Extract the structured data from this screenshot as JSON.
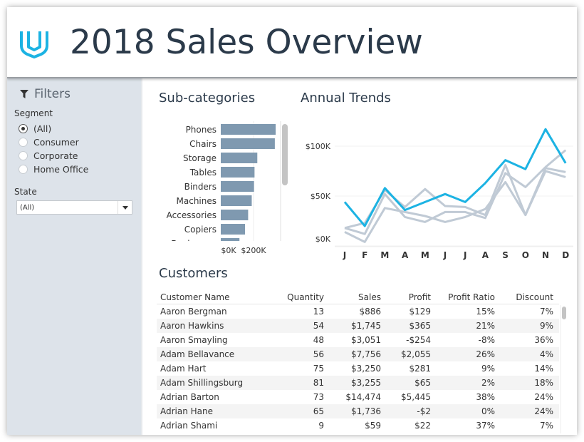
{
  "header": {
    "title": "2018 Sales Overview",
    "logo": "udacity-logo",
    "accent": "#1cb3e3"
  },
  "filters": {
    "title": "Filters",
    "icon": "filter-icon",
    "segment": {
      "label": "Segment",
      "options": [
        "(All)",
        "Consumer",
        "Corporate",
        "Home Office"
      ],
      "selected": "(All)"
    },
    "state": {
      "label": "State",
      "value": "(All)"
    }
  },
  "subcategories": {
    "title": "Sub-categories"
  },
  "annual": {
    "title": "Annual Trends"
  },
  "customers": {
    "title": "Customers",
    "columns": [
      "Customer Name",
      "Quantity",
      "Sales",
      "Profit",
      "Profit Ratio",
      "Discount"
    ],
    "rows": [
      [
        "Aaron Bergman",
        "13",
        "$886",
        "$129",
        "15%",
        "7%"
      ],
      [
        "Aaron Hawkins",
        "54",
        "$1,745",
        "$365",
        "21%",
        "9%"
      ],
      [
        "Aaron Smayling",
        "48",
        "$3,051",
        "-$254",
        "-8%",
        "36%"
      ],
      [
        "Adam Bellavance",
        "56",
        "$7,756",
        "$2,055",
        "26%",
        "4%"
      ],
      [
        "Adam Hart",
        "75",
        "$3,250",
        "$281",
        "9%",
        "14%"
      ],
      [
        "Adam Shillingsburg",
        "81",
        "$3,255",
        "$65",
        "2%",
        "18%"
      ],
      [
        "Adrian Barton",
        "73",
        "$14,474",
        "$5,445",
        "38%",
        "24%"
      ],
      [
        "Adrian Hane",
        "65",
        "$1,736",
        "-$2",
        "0%",
        "24%"
      ],
      [
        "Adrian Shami",
        "9",
        "$59",
        "$22",
        "37%",
        "7%"
      ]
    ]
  },
  "chart_data": [
    {
      "type": "bar",
      "orientation": "horizontal",
      "title": "Sub-categories",
      "categories": [
        "Phones",
        "Chairs",
        "Storage",
        "Tables",
        "Binders",
        "Machines",
        "Accessories",
        "Copiers",
        "Bookcases"
      ],
      "values": [
        335,
        330,
        223,
        206,
        203,
        189,
        167,
        148,
        114
      ],
      "unit": "$K",
      "xticks": [
        "$0K",
        "$200K"
      ],
      "xlim": [
        0,
        340
      ],
      "color": "#7f99b0",
      "grid": true
    },
    {
      "type": "line",
      "title": "Annual Trends",
      "categories": [
        "J",
        "F",
        "M",
        "A",
        "M",
        "J",
        "J",
        "A",
        "S",
        "O",
        "N",
        "D"
      ],
      "yticks": [
        "$0K",
        "$50K",
        "$100K"
      ],
      "ylim": [
        0,
        120
      ],
      "unit": "$K",
      "grid": true,
      "series": [
        {
          "values": [
            18,
            23,
            56,
            39,
            57,
            40,
            39,
            31,
            81,
            31,
            78,
            74
          ],
          "color": "#c0cad5"
        },
        {
          "values": [
            18,
            12,
            52,
            29,
            24,
            34,
            34,
            28,
            73,
            59,
            79,
            96
          ],
          "color": "#c0cad5"
        },
        {
          "values": [
            14,
            4,
            38,
            34,
            30,
            24,
            29,
            37,
            64,
            31,
            75,
            69
          ],
          "color": "#c0cad5"
        },
        {
          "values": [
            44,
            20,
            58,
            36,
            44,
            52,
            44,
            63,
            86,
            77,
            117,
            83
          ],
          "color": "#1cb3e3",
          "highlighted": true
        }
      ]
    }
  ]
}
